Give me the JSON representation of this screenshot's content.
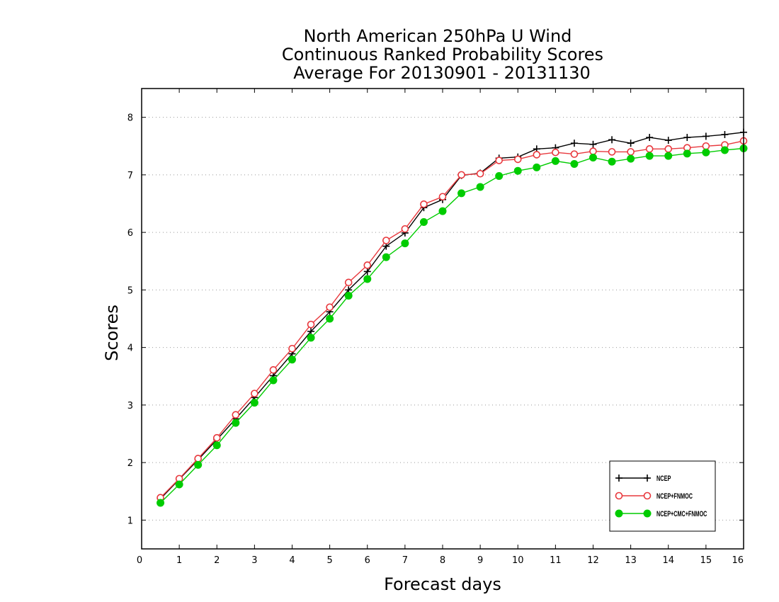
{
  "chart_data": {
    "type": "line",
    "title_lines": [
      "North American 250hPa U Wind",
      "Continuous Ranked Probability Scores",
      "Average For 20130901 - 20131130"
    ],
    "xlabel": "Forecast days",
    "ylabel": "Scores",
    "xlim": [
      0,
      16
    ],
    "ylim": [
      0.5,
      8.5
    ],
    "x_ticks": [
      0,
      1,
      2,
      3,
      4,
      5,
      6,
      7,
      8,
      9,
      10,
      11,
      12,
      13,
      14,
      15,
      16
    ],
    "y_ticks": [
      1,
      2,
      3,
      4,
      5,
      6,
      7,
      8
    ],
    "grid": "horizontal dotted",
    "legend_position": "bottom-right",
    "x": [
      0.5,
      1,
      1.5,
      2,
      2.5,
      3,
      3.5,
      4,
      4.5,
      5,
      5.5,
      6,
      6.5,
      7,
      7.5,
      8,
      8.5,
      9,
      9.5,
      10,
      10.5,
      11,
      11.5,
      12,
      12.5,
      13,
      13.5,
      14,
      14.5,
      15,
      15.5,
      16
    ],
    "series": [
      {
        "name": "NCEP",
        "color": "#000000",
        "marker": "plus",
        "values": [
          1.37,
          1.71,
          2.05,
          2.4,
          2.76,
          3.13,
          3.51,
          3.89,
          4.28,
          4.62,
          5.0,
          5.32,
          5.76,
          5.99,
          6.43,
          6.57,
          6.99,
          7.03,
          7.29,
          7.31,
          7.45,
          7.47,
          7.55,
          7.53,
          7.61,
          7.55,
          7.65,
          7.6,
          7.65,
          7.67,
          7.7,
          7.74
        ]
      },
      {
        "name": "NCEP+FNMOC",
        "color": "#e8383d",
        "marker": "open-circle",
        "values": [
          1.39,
          1.72,
          2.07,
          2.43,
          2.83,
          3.2,
          3.61,
          3.98,
          4.4,
          4.7,
          5.13,
          5.43,
          5.86,
          6.06,
          6.49,
          6.62,
          7.0,
          7.02,
          7.25,
          7.27,
          7.35,
          7.39,
          7.36,
          7.41,
          7.4,
          7.4,
          7.45,
          7.45,
          7.47,
          7.5,
          7.52,
          7.59
        ]
      },
      {
        "name": "NCEP+CMC+FNMOC",
        "color": "#00cc00",
        "marker": "filled-circle",
        "values": [
          1.3,
          1.62,
          1.96,
          2.3,
          2.69,
          3.04,
          3.43,
          3.79,
          4.17,
          4.5,
          4.9,
          5.19,
          5.57,
          5.81,
          6.18,
          6.37,
          6.68,
          6.79,
          6.98,
          7.07,
          7.13,
          7.24,
          7.19,
          7.3,
          7.23,
          7.28,
          7.33,
          7.33,
          7.37,
          7.39,
          7.43,
          7.46
        ]
      }
    ]
  }
}
